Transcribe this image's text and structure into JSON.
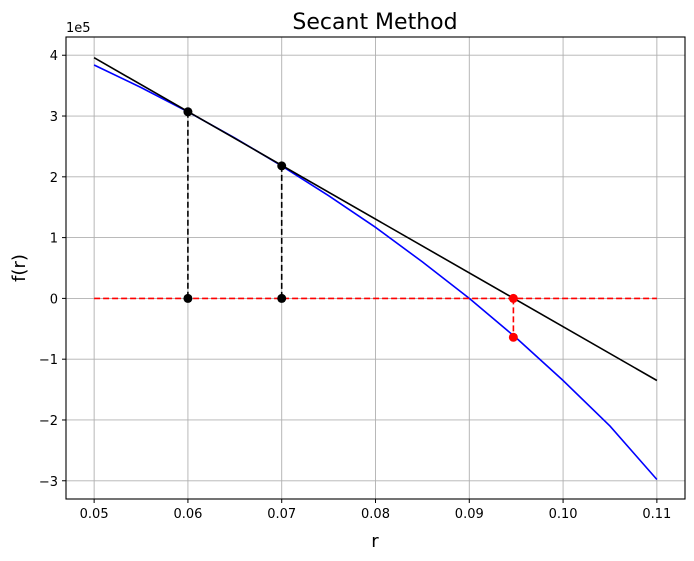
{
  "chart_data": {
    "type": "line",
    "title": "Secant Method",
    "xlabel": "r",
    "ylabel": "f(r)",
    "y_offset_label": "1e5",
    "xlim": [
      0.047,
      0.113
    ],
    "ylim": [
      -3.3,
      4.3
    ],
    "grid": true,
    "legend": null,
    "x_ticks": [
      0.05,
      0.06,
      0.07,
      0.08,
      0.09,
      0.1,
      0.11
    ],
    "x_tick_labels": [
      "0.05",
      "0.06",
      "0.07",
      "0.08",
      "0.09",
      "0.10",
      "0.11"
    ],
    "y_ticks": [
      4,
      3,
      2,
      1,
      0,
      -1,
      -2,
      -3
    ],
    "y_tick_labels": [
      "4",
      "3",
      "2",
      "1",
      "0",
      "−1",
      "−2",
      "−3"
    ],
    "series": [
      {
        "name": "f(r)",
        "style": "solid",
        "color": "#0000ff",
        "x": [
          0.05,
          0.055,
          0.06,
          0.065,
          0.07,
          0.075,
          0.08,
          0.085,
          0.09,
          0.095,
          0.1,
          0.105,
          0.11
        ],
        "y": [
          3.84,
          3.47,
          3.07,
          2.64,
          2.18,
          1.69,
          1.17,
          0.6,
          0.0,
          -0.65,
          -1.35,
          -2.1,
          -2.98
        ]
      },
      {
        "name": "secant line",
        "style": "solid",
        "color": "#000000",
        "x": [
          0.05,
          0.11
        ],
        "y": [
          3.96,
          -1.35
        ]
      },
      {
        "name": "zero line",
        "style": "dashed",
        "color": "#ff0000",
        "x": [
          0.05,
          0.11
        ],
        "y": [
          0,
          0
        ]
      },
      {
        "name": "drop r0",
        "style": "dashed",
        "color": "#000000",
        "x": [
          0.06,
          0.06
        ],
        "y": [
          3.07,
          0
        ]
      },
      {
        "name": "drop r1",
        "style": "dashed",
        "color": "#000000",
        "x": [
          0.07,
          0.07
        ],
        "y": [
          2.18,
          0
        ]
      },
      {
        "name": "drop r2",
        "style": "dashed",
        "color": "#ff0000",
        "x": [
          0.0947,
          0.0947
        ],
        "y": [
          0,
          -0.64
        ]
      }
    ],
    "points": [
      {
        "x": 0.06,
        "y": 3.07,
        "color": "#000000"
      },
      {
        "x": 0.06,
        "y": 0,
        "color": "#000000"
      },
      {
        "x": 0.07,
        "y": 2.18,
        "color": "#000000"
      },
      {
        "x": 0.07,
        "y": 0,
        "color": "#000000"
      },
      {
        "x": 0.0947,
        "y": 0,
        "color": "#ff0000"
      },
      {
        "x": 0.0947,
        "y": -0.64,
        "color": "#ff0000"
      }
    ]
  },
  "colors": {
    "grid": "#b0b0b0",
    "frame": "#000000"
  }
}
